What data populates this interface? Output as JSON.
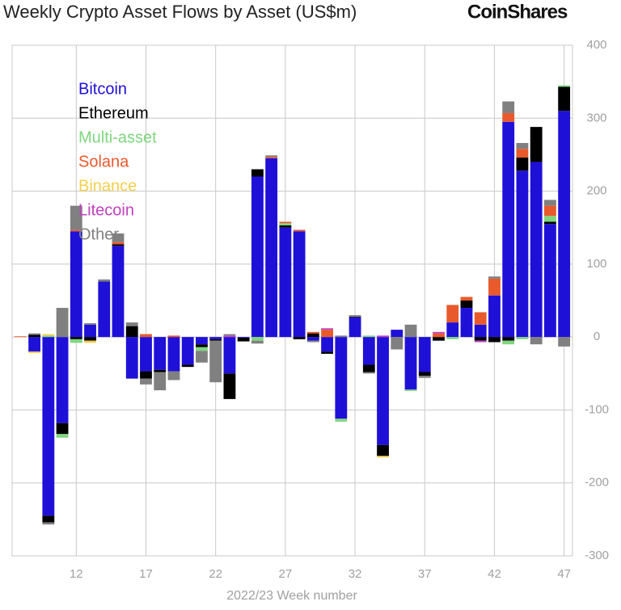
{
  "chart_data": {
    "type": "bar",
    "stacked": true,
    "title": "Weekly Crypto Asset Flows by Asset (US$m)",
    "brand": "CoinShares",
    "x_label": "2022/23 Week number",
    "x": [
      8,
      9,
      10,
      11,
      12,
      13,
      14,
      15,
      16,
      17,
      18,
      19,
      20,
      21,
      22,
      23,
      24,
      25,
      26,
      27,
      28,
      29,
      30,
      31,
      32,
      33,
      34,
      35,
      36,
      37,
      38,
      39,
      40,
      41,
      42,
      43,
      44,
      45,
      46,
      47
    ],
    "xlim": [
      7.4,
      47.6
    ],
    "xticks": [
      12,
      17,
      22,
      27,
      32,
      37,
      42,
      47
    ],
    "ylim": [
      -300,
      400
    ],
    "yticks": [
      -300,
      -200,
      -100,
      0,
      100,
      200,
      300,
      400
    ],
    "grid": true,
    "legend": "upper left",
    "series": [
      {
        "name": "Bitcoin",
        "color": "#1f10d8",
        "values": [
          0,
          -20,
          -245,
          -118,
          145,
          17,
          76,
          125,
          -57,
          -47,
          -45,
          -47,
          -38,
          -10,
          -3,
          -50,
          -1,
          220,
          245,
          150,
          145,
          -5,
          -20,
          -112,
          27,
          -38,
          -148,
          10,
          -72,
          -48,
          0,
          20,
          40,
          17,
          57,
          295,
          228,
          240,
          155,
          310
        ]
      },
      {
        "name": "Ethereum",
        "color": "#000000",
        "values": [
          0,
          3,
          -9,
          -15,
          -3,
          -5,
          0,
          2,
          15,
          -10,
          -3,
          0,
          -3,
          -4,
          -2,
          -35,
          -5,
          10,
          0,
          3,
          -3,
          5,
          -3,
          0,
          1,
          -10,
          -15,
          0,
          0,
          -5,
          -5,
          0,
          10,
          -5,
          -7,
          -5,
          18,
          48,
          3,
          33
        ]
      },
      {
        "name": "Multi-asset",
        "color": "#7fd67f",
        "values": [
          0,
          0,
          2,
          -5,
          -5,
          0,
          0,
          0,
          0,
          0,
          0,
          0,
          0,
          -5,
          0,
          0,
          0,
          -5,
          0,
          3,
          0,
          0,
          0,
          -4,
          0,
          2,
          0,
          0,
          -2,
          0,
          0,
          -3,
          0,
          0,
          0,
          -5,
          -3,
          0,
          8,
          2
        ]
      },
      {
        "name": "Solana",
        "color": "#e85a2c",
        "values": [
          1,
          0,
          0,
          0,
          2,
          0,
          0,
          3,
          0,
          4,
          0,
          2,
          0,
          0,
          0,
          0,
          0,
          0,
          2,
          2,
          2,
          2,
          10,
          0,
          0,
          0,
          0,
          0,
          0,
          0,
          5,
          24,
          5,
          17,
          23,
          12,
          12,
          0,
          14,
          0
        ]
      },
      {
        "name": "Binance",
        "color": "#f5d04c",
        "values": [
          0,
          -2,
          2,
          0,
          0,
          -3,
          0,
          0,
          0,
          0,
          0,
          0,
          0,
          0,
          0,
          0,
          0,
          0,
          0,
          0,
          0,
          0,
          0,
          0,
          0,
          0,
          -2,
          0,
          0,
          0,
          0,
          0,
          0,
          0,
          0,
          0,
          0,
          0,
          0,
          0
        ]
      },
      {
        "name": "Litecoin",
        "color": "#c040c0",
        "values": [
          0,
          0,
          0,
          0,
          0,
          0,
          0,
          0,
          0,
          0,
          0,
          0,
          0,
          0,
          0,
          2,
          0,
          0,
          0,
          0,
          0,
          0,
          2,
          0,
          0,
          0,
          2,
          0,
          0,
          0,
          2,
          0,
          0,
          -2,
          0,
          0,
          0,
          0,
          0,
          0
        ]
      },
      {
        "name": "Other",
        "color": "#808080",
        "values": [
          0,
          2,
          -3,
          40,
          33,
          2,
          3,
          12,
          5,
          -8,
          -25,
          -12,
          0,
          -16,
          -57,
          2,
          0,
          -4,
          2,
          0,
          0,
          -2,
          0,
          2,
          2,
          -2,
          0,
          -17,
          17,
          -3,
          0,
          0,
          0,
          0,
          3,
          16,
          8,
          -10,
          8,
          -13
        ]
      }
    ]
  }
}
